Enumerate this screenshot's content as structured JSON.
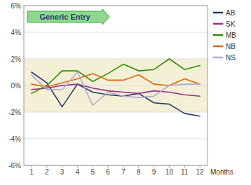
{
  "chart_data": {
    "type": "line",
    "x_label": "Months",
    "annotation": "Generic Entry",
    "x": [
      1,
      2,
      3,
      4,
      5,
      6,
      7,
      8,
      9,
      10,
      11,
      12
    ],
    "xlim": [
      0.5,
      12.5
    ],
    "xticks": [
      1,
      2,
      3,
      4,
      5,
      6,
      7,
      8,
      9,
      10,
      11,
      12
    ],
    "ylim": [
      -6,
      6
    ],
    "yticks": [
      {
        "value": -6,
        "label": "-6%"
      },
      {
        "value": -4,
        "label": "-4%"
      },
      {
        "value": -2,
        "label": "-2%"
      },
      {
        "value": 0,
        "label": "0%"
      },
      {
        "value": 2,
        "label": "2%"
      },
      {
        "value": 4,
        "label": "4%"
      },
      {
        "value": 6,
        "label": "6%"
      }
    ],
    "shaded_band": [
      -2,
      2
    ],
    "grid": true,
    "legend": "right",
    "series": [
      {
        "name": "AB",
        "color": "#1F3A6E",
        "values": [
          1.0,
          0.2,
          -1.6,
          0.1,
          -0.5,
          -0.7,
          -0.8,
          -0.6,
          -1.3,
          -1.4,
          -2.1,
          -2.3
        ]
      },
      {
        "name": "SK",
        "color": "#9B2D8E",
        "values": [
          -0.3,
          -0.2,
          0.0,
          0.1,
          -0.2,
          -0.4,
          -0.5,
          -0.6,
          -0.4,
          -0.5,
          -0.7,
          -0.8
        ]
      },
      {
        "name": "MB",
        "color": "#2E8B00",
        "values": [
          -0.6,
          0.0,
          1.1,
          1.1,
          0.3,
          0.9,
          1.6,
          1.1,
          1.2,
          2.0,
          1.2,
          1.5
        ]
      },
      {
        "name": "NB",
        "color": "#E8650A",
        "values": [
          0.1,
          -0.1,
          0.2,
          0.5,
          0.9,
          0.4,
          0.4,
          0.8,
          0.1,
          0.0,
          0.5,
          0.1
        ]
      },
      {
        "name": "NS",
        "color": "#B0A8D0",
        "values": [
          0.8,
          -0.3,
          -0.3,
          1.0,
          -1.5,
          -0.5,
          -0.8,
          -0.9,
          -0.8,
          0.0,
          0.1,
          0.1
        ]
      }
    ]
  }
}
